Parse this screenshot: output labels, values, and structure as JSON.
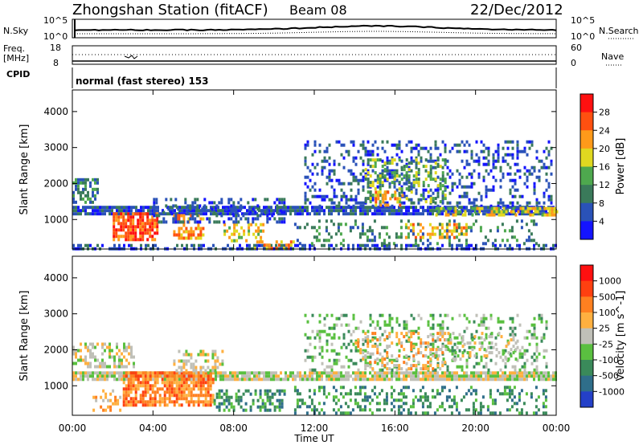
{
  "header": {
    "station": "Zhongshan Station (fitACF)",
    "beam": "Beam 08",
    "date": "22/Dec/2012"
  },
  "noise_panel": {
    "left_label": "N.Sky",
    "right_label": "N.Search",
    "left_ticks": [
      "10^5",
      "10^0"
    ],
    "right_ticks": [
      "10^5",
      "10^0"
    ]
  },
  "freq_panel": {
    "left_label_line1": "Freq.",
    "left_label_line2": "[MHz]",
    "left_ticks": [
      "18",
      "8"
    ],
    "right_label": "Nave",
    "right_ticks": [
      "60",
      "0"
    ]
  },
  "cpid": {
    "label": "CPID",
    "text": "normal (fast stereo) 153"
  },
  "axes": {
    "ylabel": "Slant Range [km]",
    "xlabel": "Time UT",
    "yticks": [
      "1000",
      "2000",
      "3000",
      "4000"
    ],
    "xticks": [
      "00:00",
      "04:00",
      "08:00",
      "12:00",
      "16:00",
      "20:00",
      "00:00"
    ]
  },
  "chart_data": [
    {
      "type": "heatmap",
      "title": "Power",
      "colorbar_label": "Power [dB]",
      "colorbar_ticks": [
        "4",
        "8",
        "12",
        "16",
        "20",
        "24",
        "28"
      ],
      "colorbar_colors": [
        "#1414ff",
        "#2a52b8",
        "#3a7a5a",
        "#4ea84e",
        "#e0d820",
        "#ff9a1a",
        "#ff5010",
        "#ff1010"
      ],
      "x_range_hours": [
        0,
        24
      ],
      "y_range_km": [
        180,
        4600
      ],
      "regions": [
        {
          "t0": 0.0,
          "t1": 24.0,
          "r0": 1180,
          "r1": 1380,
          "level": 1,
          "density": 0.85
        },
        {
          "t0": 0.0,
          "t1": 1.2,
          "r0": 1500,
          "r1": 2150,
          "level": 2,
          "density": 0.6
        },
        {
          "t0": 0.0,
          "t1": 24.0,
          "r0": 200,
          "r1": 320,
          "level": 1,
          "density": 0.55
        },
        {
          "t0": 2.0,
          "t1": 4.2,
          "r0": 480,
          "r1": 1200,
          "level": 6,
          "density": 0.75
        },
        {
          "t0": 5.0,
          "t1": 6.5,
          "r0": 500,
          "r1": 1150,
          "level": 5,
          "density": 0.6
        },
        {
          "t0": 7.5,
          "t1": 9.5,
          "r0": 400,
          "r1": 900,
          "level": 4,
          "density": 0.45
        },
        {
          "t0": 4.0,
          "t1": 10.5,
          "r0": 900,
          "r1": 1600,
          "level": 1,
          "density": 0.35
        },
        {
          "t0": 9.0,
          "t1": 11.0,
          "r0": 220,
          "r1": 420,
          "level": 5,
          "density": 0.45
        },
        {
          "t0": 11.5,
          "t1": 23.8,
          "r0": 1400,
          "r1": 3200,
          "level": 1,
          "density": 0.28
        },
        {
          "t0": 14.5,
          "t1": 18.5,
          "r0": 1500,
          "r1": 2700,
          "level": 3,
          "density": 0.3
        },
        {
          "t0": 15.0,
          "t1": 16.5,
          "r0": 1400,
          "r1": 1800,
          "level": 5,
          "density": 0.35
        },
        {
          "t0": 16.5,
          "t1": 19.5,
          "r0": 500,
          "r1": 900,
          "level": 5,
          "density": 0.45
        },
        {
          "t0": 11.0,
          "t1": 23.0,
          "r0": 300,
          "r1": 1000,
          "level": 2,
          "density": 0.22
        },
        {
          "t0": 18.0,
          "t1": 24.0,
          "r0": 1100,
          "r1": 1350,
          "level": 4,
          "density": 0.55
        }
      ]
    },
    {
      "type": "heatmap",
      "title": "Velocity",
      "colorbar_label": "Velocity [m s^-1]",
      "colorbar_ticks": [
        "1000",
        "500",
        "100",
        "25",
        "-25",
        "-100",
        "-500",
        "-1000"
      ],
      "colorbar_colors": [
        "#2440c8",
        "#2f6e8a",
        "#3a8a5a",
        "#5ac040",
        "#c0c0b8",
        "#ffb040",
        "#ff8020",
        "#ff4010",
        "#ff1010"
      ],
      "x_range_hours": [
        0,
        24
      ],
      "y_range_km": [
        180,
        4600
      ],
      "regions": [
        {
          "t0": 0.0,
          "t1": 24.0,
          "r0": 1180,
          "r1": 1400,
          "level": 4,
          "density": 0.9
        },
        {
          "t0": 0.0,
          "t1": 3.0,
          "r0": 1500,
          "r1": 2200,
          "level": 4,
          "density": 0.55
        },
        {
          "t0": 2.5,
          "t1": 7.0,
          "r0": 450,
          "r1": 1400,
          "level": 6,
          "density": 0.75
        },
        {
          "t0": 1.0,
          "t1": 2.5,
          "r0": 300,
          "r1": 900,
          "level": 5,
          "density": 0.35
        },
        {
          "t0": 7.0,
          "t1": 10.5,
          "r0": 300,
          "r1": 900,
          "level": 2,
          "density": 0.45
        },
        {
          "t0": 5.0,
          "t1": 7.5,
          "r0": 1400,
          "r1": 2000,
          "level": 4,
          "density": 0.4
        },
        {
          "t0": 11.5,
          "t1": 23.5,
          "r0": 1400,
          "r1": 3000,
          "level": 3,
          "density": 0.25
        },
        {
          "t0": 14.0,
          "t1": 18.5,
          "r0": 1500,
          "r1": 2500,
          "level": 5,
          "density": 0.3
        },
        {
          "t0": 11.0,
          "t1": 23.5,
          "r0": 250,
          "r1": 1000,
          "level": 2,
          "density": 0.3
        },
        {
          "t0": 18.0,
          "t1": 22.0,
          "r0": 1700,
          "r1": 2500,
          "level": 4,
          "density": 0.25
        }
      ]
    }
  ]
}
